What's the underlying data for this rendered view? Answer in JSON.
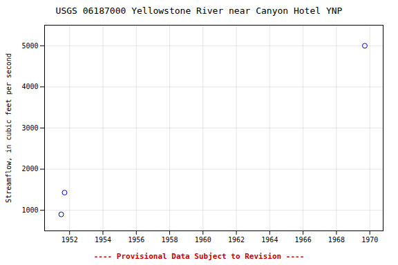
{
  "chart_data": {
    "type": "scatter",
    "title": "USGS 06187000 Yellowstone River near Canyon Hotel YNP",
    "ylabel": "Streamflow, in cubic feet per second",
    "x": [
      1951.5,
      1951.7,
      1969.7
    ],
    "values": [
      900,
      1430,
      5000
    ],
    "color": "#0000cc",
    "marker": "circle",
    "xlim": [
      1950.5,
      1970.8
    ],
    "ylim": [
      500,
      5500
    ],
    "xticks": [
      1952,
      1954,
      1956,
      1958,
      1960,
      1962,
      1964,
      1966,
      1968,
      1970
    ],
    "yticks": [
      1000,
      2000,
      3000,
      4000,
      5000
    ],
    "grid": true,
    "annotations": [
      {
        "text": "---- Provisional Data Subject to Revision ----",
        "color": "#cc0000"
      }
    ]
  }
}
